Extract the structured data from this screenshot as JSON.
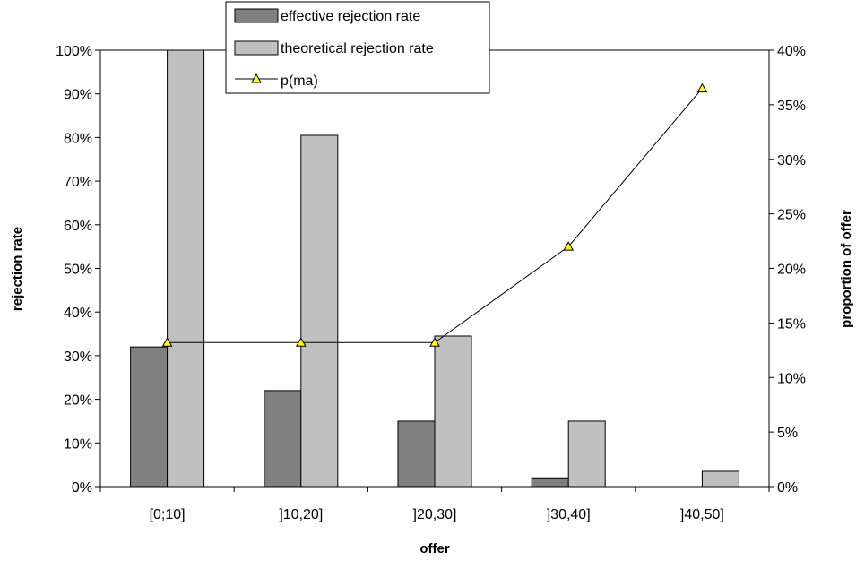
{
  "chart_data": {
    "type": "bar",
    "categories": [
      "[0;10]",
      "]10,20]",
      "]20,30]",
      "]30,40]",
      "]40,50]"
    ],
    "series": [
      {
        "name": "effective rejection rate",
        "axis": "left",
        "kind": "bar",
        "values": [
          32,
          22,
          15,
          2,
          0
        ]
      },
      {
        "name": "theoretical rejection rate",
        "axis": "left",
        "kind": "bar",
        "values": [
          100,
          80.5,
          34.5,
          15,
          3.5
        ]
      },
      {
        "name": "p(ma)",
        "axis": "right",
        "kind": "line",
        "marker": "triangle",
        "values": [
          13.2,
          13.2,
          13.2,
          22,
          36.5
        ]
      }
    ],
    "xlabel": "offer",
    "ylabel": "rejection rate",
    "y2label": "proportion of offer",
    "ylim": [
      0,
      100
    ],
    "y2lim": [
      0,
      40
    ],
    "yticks": [
      "0%",
      "10%",
      "20%",
      "30%",
      "40%",
      "50%",
      "60%",
      "70%",
      "80%",
      "90%",
      "100%"
    ],
    "y2ticks": [
      "0%",
      "5%",
      "10%",
      "15%",
      "20%",
      "25%",
      "30%",
      "35%",
      "40%"
    ],
    "legend": "top-center",
    "grid": false,
    "colors": {
      "effective": "#808080",
      "theoretical": "#c0c0c0",
      "line": "#000000",
      "marker_fill": "#ffff00"
    }
  }
}
